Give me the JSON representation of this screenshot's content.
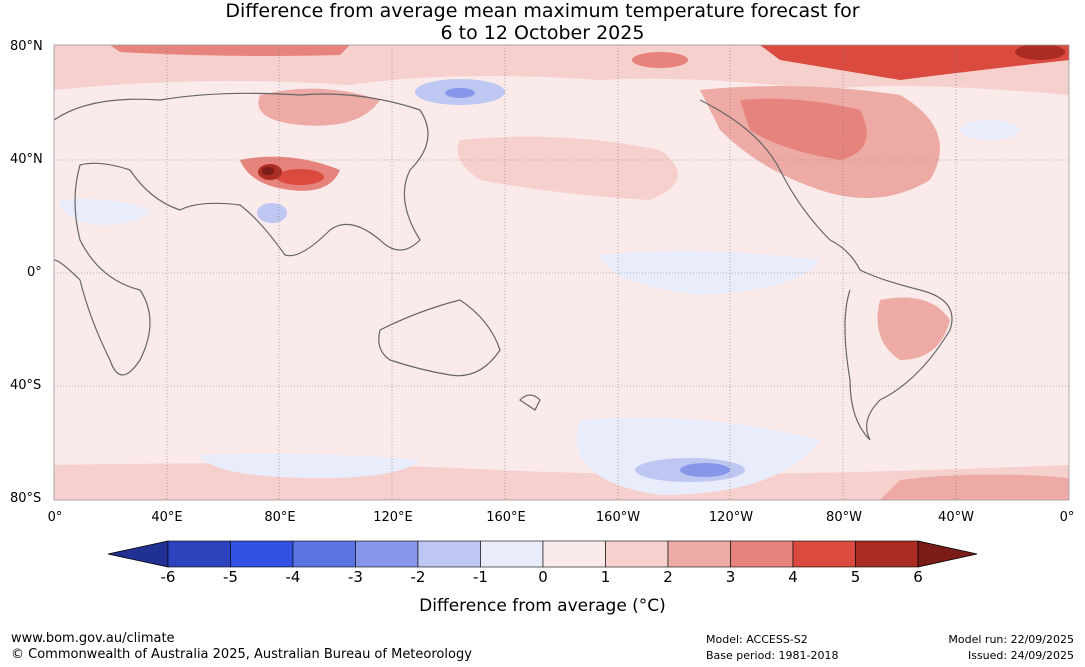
{
  "title": {
    "line1": "Difference from average mean maximum temperature forecast for",
    "line2": "6 to 12 October 2025"
  },
  "map": {
    "lat_labels": [
      "80°N",
      "40°N",
      "0°",
      "40°S",
      "80°S"
    ],
    "lon_labels": [
      "0°",
      "40°E",
      "80°E",
      "120°E",
      "160°E",
      "160°W",
      "120°W",
      "80°W",
      "40°W",
      "0°"
    ]
  },
  "colorbar": {
    "ticks": [
      "-6",
      "-5",
      "-4",
      "-3",
      "-2",
      "-1",
      "0",
      "1",
      "2",
      "3",
      "4",
      "5",
      "6"
    ],
    "colors": [
      "#213193",
      "#2b44be",
      "#3151e2",
      "#5a74e4",
      "#8796e8",
      "#bec7f2",
      "#e9ecfb",
      "#fbeaea",
      "#f5d0cc",
      "#eeaaa4",
      "#e6837c",
      "#da4a3f",
      "#ab2c23",
      "#7b1c16"
    ],
    "label": "Difference from average (°C)"
  },
  "footer": {
    "website": "www.bom.gov.au/climate",
    "copyright": "© Commonwealth of Australia 2025, Australian Bureau of Meteorology",
    "model": "Model: ACCESS-S2",
    "base_period": "Base period: 1981-2018",
    "model_run": "Model run: 22/09/2025",
    "issued": "Issued: 24/09/2025"
  }
}
